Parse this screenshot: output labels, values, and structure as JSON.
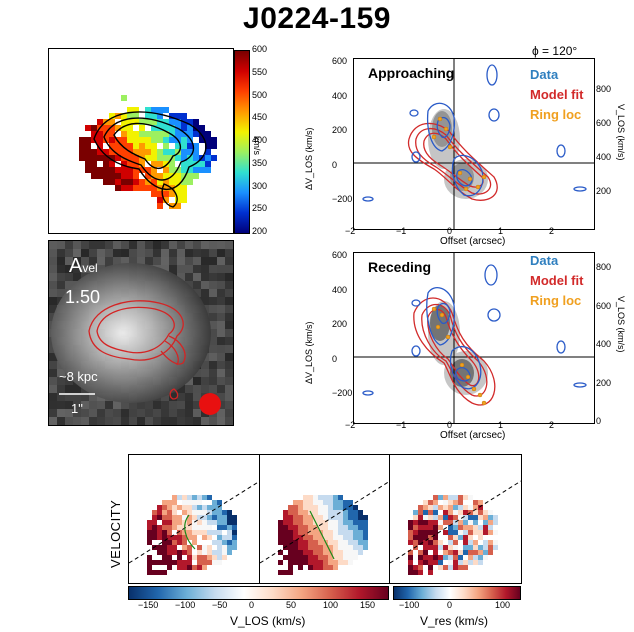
{
  "title": "J0224-159",
  "velocity_map": {
    "colorbar_ticks": [
      "600",
      "550",
      "500",
      "450",
      "400",
      "350",
      "300",
      "250",
      "200"
    ],
    "colorbar_unit": "km/s"
  },
  "image_panel": {
    "label_a": "A",
    "label_sub": "vel",
    "value": "1.50",
    "scale_kpc": "~8 kpc",
    "scale_arcsec": "1\""
  },
  "pv_top": {
    "phi_label": "ϕ = 120°",
    "title": "Approaching",
    "legend": [
      {
        "text": "Data",
        "color": "#2f7fbf"
      },
      {
        "text": "Model fit",
        "color": "#d22a2a"
      },
      {
        "text": "Ring loc",
        "color": "#f0a020"
      }
    ],
    "y_ticks": [
      "600",
      "400",
      "200",
      "0",
      "−200"
    ],
    "x_ticks": [
      "−2",
      "−1",
      "0",
      "1",
      "2"
    ],
    "right_ticks": [
      "800",
      "600",
      "400",
      "200"
    ],
    "ylabel": "ΔV_LOS (km/s)",
    "xlabel": "Offset (arcsec)",
    "right_label": "V_LOS (km/s)"
  },
  "pv_bottom": {
    "title": "Receding",
    "legend": [
      {
        "text": "Data",
        "color": "#2f7fbf"
      },
      {
        "text": "Model fit",
        "color": "#d22a2a"
      },
      {
        "text": "Ring loc",
        "color": "#f0a020"
      }
    ],
    "y_ticks": [
      "600",
      "400",
      "200",
      "0",
      "−200"
    ],
    "x_ticks": [
      "−2",
      "−1",
      "0",
      "1",
      "2"
    ],
    "right_ticks": [
      "800",
      "600",
      "400",
      "200",
      "0"
    ],
    "ylabel": "ΔV_LOS (km/s)",
    "xlabel": "Offset (arcsec)",
    "right_label": "V_LOS (km/s)"
  },
  "velocity_row": {
    "side_label": "VELOCITY",
    "cbar1_ticks": [
      "−150",
      "−100",
      "−50",
      "0",
      "50",
      "100",
      "150"
    ],
    "cbar1_label": "V_LOS (km/s)",
    "cbar2_ticks": [
      "−100",
      "0",
      "100"
    ],
    "cbar2_label": "V_res (km/s)"
  }
}
